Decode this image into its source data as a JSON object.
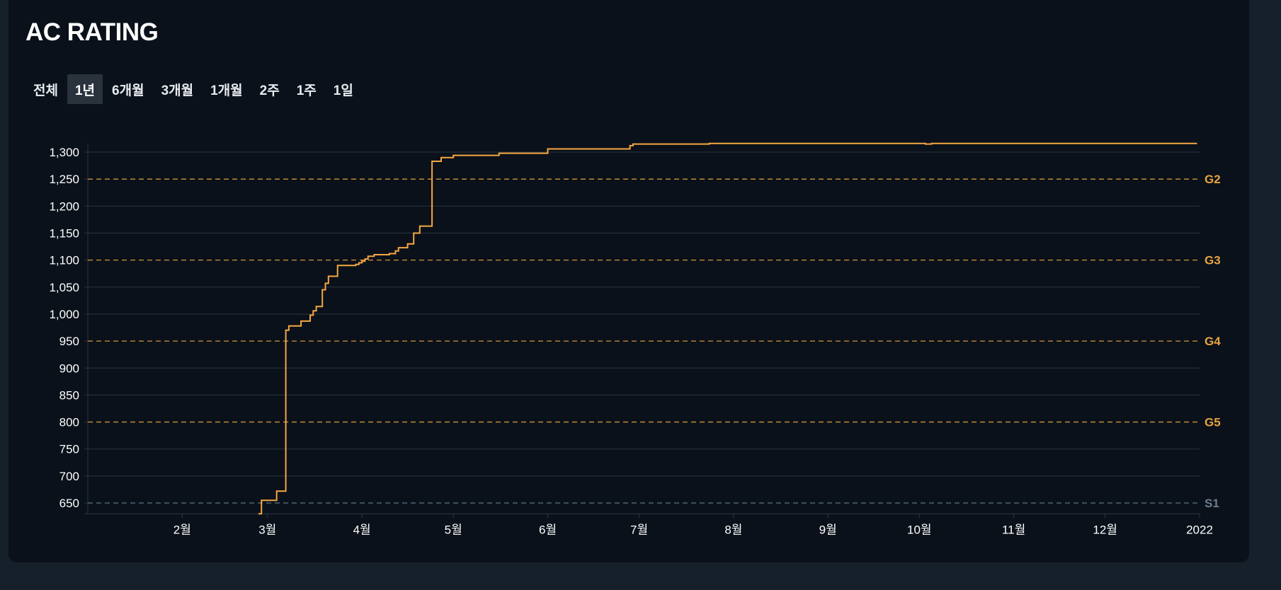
{
  "header": {
    "title": "AC RATING"
  },
  "tabs": [
    {
      "label": "전체",
      "active": false
    },
    {
      "label": "1년",
      "active": true
    },
    {
      "label": "6개월",
      "active": false
    },
    {
      "label": "3개월",
      "active": false
    },
    {
      "label": "1개월",
      "active": false
    },
    {
      "label": "2주",
      "active": false
    },
    {
      "label": "1주",
      "active": false
    },
    {
      "label": "1일",
      "active": false
    }
  ],
  "colors": {
    "page_background": "#16202a",
    "card_background": "#0a111a",
    "line": "#f5a742",
    "grid": "#2b3540",
    "gold_tier": "#e8a33f",
    "silver_tier": "#6b7d8f"
  },
  "chart_data": {
    "type": "line",
    "step": true,
    "title": "",
    "xlabel": "",
    "ylabel": "",
    "ylim": [
      630,
      1318
    ],
    "xlim": [
      "2021-01-01",
      "2022-01-01"
    ],
    "grid": true,
    "y_ticks": [
      650,
      700,
      750,
      800,
      850,
      900,
      950,
      1000,
      1050,
      1100,
      1150,
      1200,
      1250,
      1300
    ],
    "y_tick_labels": [
      "650",
      "700",
      "750",
      "800",
      "850",
      "900",
      "950",
      "1,000",
      "1,050",
      "1,100",
      "1,150",
      "1,200",
      "1,250",
      "1,300"
    ],
    "x_ticks": [
      {
        "label": "2월",
        "date": "2021-02-01"
      },
      {
        "label": "3월",
        "date": "2021-03-01"
      },
      {
        "label": "4월",
        "date": "2021-04-01"
      },
      {
        "label": "5월",
        "date": "2021-05-01"
      },
      {
        "label": "6월",
        "date": "2021-06-01"
      },
      {
        "label": "7월",
        "date": "2021-07-01"
      },
      {
        "label": "8월",
        "date": "2021-08-01"
      },
      {
        "label": "9월",
        "date": "2021-09-01"
      },
      {
        "label": "10월",
        "date": "2021-10-01"
      },
      {
        "label": "11월",
        "date": "2021-11-01"
      },
      {
        "label": "12월",
        "date": "2021-12-01"
      },
      {
        "label": "2022",
        "date": "2022-01-01"
      }
    ],
    "tiers": [
      {
        "name": "G2",
        "value": 1250,
        "color": "#e8a33f"
      },
      {
        "name": "G3",
        "value": 1100,
        "color": "#e8a33f"
      },
      {
        "name": "G4",
        "value": 950,
        "color": "#e8a33f"
      },
      {
        "name": "G5",
        "value": 800,
        "color": "#e8a33f"
      },
      {
        "name": "S1",
        "value": 650,
        "color": "#6b7d8f"
      }
    ],
    "points": [
      {
        "x": "2021-02-26",
        "y": 630
      },
      {
        "x": "2021-02-27",
        "y": 655
      },
      {
        "x": "2021-03-04",
        "y": 672
      },
      {
        "x": "2021-03-07",
        "y": 970
      },
      {
        "x": "2021-03-08",
        "y": 978
      },
      {
        "x": "2021-03-12",
        "y": 987
      },
      {
        "x": "2021-03-15",
        "y": 998
      },
      {
        "x": "2021-03-16",
        "y": 1006
      },
      {
        "x": "2021-03-17",
        "y": 1014
      },
      {
        "x": "2021-03-19",
        "y": 1045
      },
      {
        "x": "2021-03-20",
        "y": 1057
      },
      {
        "x": "2021-03-21",
        "y": 1070
      },
      {
        "x": "2021-03-24",
        "y": 1090
      },
      {
        "x": "2021-03-30",
        "y": 1092
      },
      {
        "x": "2021-03-31",
        "y": 1095
      },
      {
        "x": "2021-04-01",
        "y": 1098
      },
      {
        "x": "2021-04-02",
        "y": 1102
      },
      {
        "x": "2021-04-03",
        "y": 1107
      },
      {
        "x": "2021-04-05",
        "y": 1110
      },
      {
        "x": "2021-04-10",
        "y": 1112
      },
      {
        "x": "2021-04-12",
        "y": 1117
      },
      {
        "x": "2021-04-13",
        "y": 1123
      },
      {
        "x": "2021-04-16",
        "y": 1130
      },
      {
        "x": "2021-04-18",
        "y": 1150
      },
      {
        "x": "2021-04-20",
        "y": 1163
      },
      {
        "x": "2021-04-24",
        "y": 1283
      },
      {
        "x": "2021-04-27",
        "y": 1290
      },
      {
        "x": "2021-05-01",
        "y": 1294
      },
      {
        "x": "2021-05-16",
        "y": 1298
      },
      {
        "x": "2021-06-01",
        "y": 1306
      },
      {
        "x": "2021-06-28",
        "y": 1312
      },
      {
        "x": "2021-06-29",
        "y": 1315
      },
      {
        "x": "2021-07-24",
        "y": 1316
      },
      {
        "x": "2021-10-03",
        "y": 1315
      },
      {
        "x": "2021-10-05",
        "y": 1316
      },
      {
        "x": "2021-12-31",
        "y": 1317
      }
    ]
  }
}
